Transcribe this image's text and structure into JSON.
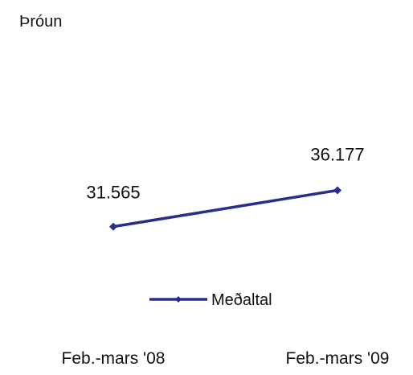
{
  "chart_data": {
    "type": "line",
    "title": "Þróun",
    "categories": [
      "Feb.-mars '08",
      "Feb.-mars '09"
    ],
    "series": [
      {
        "name": "Meðaltal",
        "values": [
          31565,
          36177
        ],
        "value_labels": [
          "31.565",
          "36.177"
        ],
        "color": "#2b2d8c",
        "marker": "diamond"
      }
    ],
    "ylim": [
      20000,
      45000
    ],
    "grid": false,
    "legend": "bottom-center"
  }
}
